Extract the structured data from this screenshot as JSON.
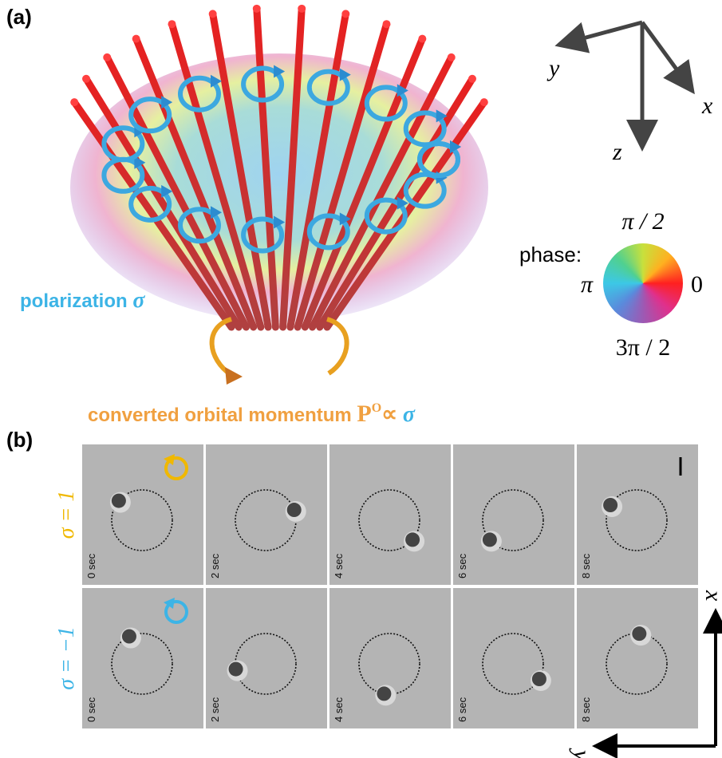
{
  "panel_a": {
    "label": "(a)",
    "polarization": {
      "text": "polarization",
      "symbol": "σ"
    },
    "momentum": {
      "text": "converted orbital momentum",
      "symbol": "P",
      "superscript": "O",
      "relation": "∝",
      "sigma": "σ"
    },
    "axes": {
      "y": "y",
      "x": "x",
      "z": "z"
    },
    "phase": {
      "label": "phase:",
      "top": "π / 2",
      "left": "π",
      "right": "0",
      "bottom": "3π / 2"
    }
  },
  "panel_b": {
    "label": "(b)",
    "rows": [
      {
        "label": "σ = 1",
        "times": [
          "0 sec",
          "2 sec",
          "4 sec",
          "6 sec",
          "8 sec"
        ]
      },
      {
        "label": "σ = −1",
        "times": [
          "0 sec",
          "2 sec",
          "4 sec",
          "6 sec",
          "8 sec"
        ]
      }
    ],
    "axes": {
      "x": "x",
      "y": "y"
    }
  }
}
